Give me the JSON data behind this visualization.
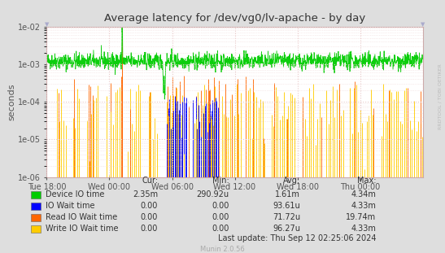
{
  "title": "Average latency for /dev/vg0/lv-apache - by day",
  "ylabel": "seconds",
  "background_color": "#dedede",
  "plot_bg_color": "#ffffff",
  "grid_color": "#e8c8c8",
  "title_color": "#333333",
  "watermark": "RRDTOOL / TOBI OETIKER",
  "munin_version": "Munin 2.0.56",
  "x_ticks": [
    "Tue 18:00",
    "Wed 00:00",
    "Wed 06:00",
    "Wed 12:00",
    "Wed 18:00",
    "Thu 00:00"
  ],
  "y_min": 1e-06,
  "y_max": 0.01,
  "colors": {
    "device_io": "#00cc00",
    "io_wait": "#0000ff",
    "read_io_wait": "#ff6600",
    "write_io_wait": "#ffcc00"
  },
  "legend_labels": [
    "Device IO time",
    "IO Wait time",
    "Read IO Wait time",
    "Write IO Wait time"
  ],
  "legend_colors": [
    "#00cc00",
    "#0000ff",
    "#ff6600",
    "#ffcc00"
  ],
  "stats_header": [
    "Cur:",
    "Min:",
    "Avg:",
    "Max:"
  ],
  "stats": [
    [
      "2.35m",
      "290.92u",
      "1.61m",
      "4.34m"
    ],
    [
      "0.00",
      "0.00",
      "93.61u",
      "4.33m"
    ],
    [
      "0.00",
      "0.00",
      "71.72u",
      "19.74m"
    ],
    [
      "0.00",
      "0.00",
      "96.27u",
      "4.33m"
    ]
  ],
  "last_update": "Last update: Thu Sep 12 02:25:06 2024"
}
